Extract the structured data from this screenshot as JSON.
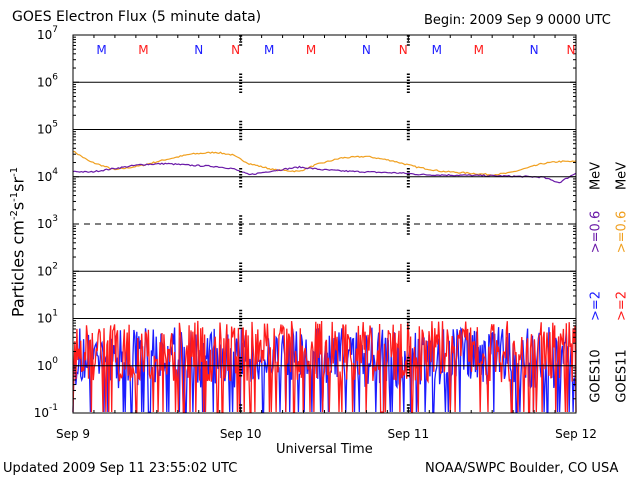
{
  "header": {
    "title": "GOES Electron Flux (5 minute data)",
    "begin": "Begin: 2009 Sep 9 0000 UTC"
  },
  "footer": {
    "updated": "Updated 2009 Sep 11 23:55:02 UTC",
    "credit": "NOAA/SWPC Boulder, CO USA"
  },
  "colors": {
    "blue": "#1c1cff",
    "red": "#ff1c1c",
    "orange": "#f0a020",
    "purple": "#6a1aa8"
  },
  "right_labels": {
    "ge2_blue": ">=2",
    "ge06_purple": ">=0.6",
    "mev_1": "MeV",
    "ge2_red": ">=2",
    "ge06_orange": ">=0.6",
    "mev_2": "MeV",
    "goes10": "GOES10",
    "goes11": "GOES11"
  },
  "markers": [
    {
      "t": 0.17,
      "label": "M",
      "color": "#1c1cff"
    },
    {
      "t": 0.42,
      "label": "M",
      "color": "#ff1c1c"
    },
    {
      "t": 0.75,
      "label": "N",
      "color": "#1c1cff"
    },
    {
      "t": 0.97,
      "label": "N",
      "color": "#ff1c1c"
    },
    {
      "t": 1.17,
      "label": "M",
      "color": "#1c1cff"
    },
    {
      "t": 1.42,
      "label": "M",
      "color": "#ff1c1c"
    },
    {
      "t": 1.75,
      "label": "N",
      "color": "#1c1cff"
    },
    {
      "t": 1.97,
      "label": "N",
      "color": "#ff1c1c"
    },
    {
      "t": 2.17,
      "label": "M",
      "color": "#1c1cff"
    },
    {
      "t": 2.42,
      "label": "M",
      "color": "#ff1c1c"
    },
    {
      "t": 2.75,
      "label": "N",
      "color": "#1c1cff"
    },
    {
      "t": 2.97,
      "label": "N",
      "color": "#ff1c1c"
    }
  ],
  "chart_data": {
    "type": "line",
    "title": "GOES Electron Flux (5 minute data)",
    "xlabel": "Universal Time",
    "ylabel": "Particles cm-2s-1sr-1",
    "ylabel_parts": {
      "base": "Particles cm",
      "e1": "-2",
      "s": "s",
      "e2": "-1",
      "sr": "sr",
      "e3": "-1"
    },
    "ylim_exponent": [
      -1,
      7
    ],
    "y_scale": "log",
    "yticks_exponent": [
      -1,
      0,
      1,
      2,
      3,
      4,
      5,
      6,
      7
    ],
    "x_day_range": [
      0,
      3
    ],
    "x_tick_labels": [
      {
        "day": 0,
        "label": "Sep 9"
      },
      {
        "day": 1,
        "label": "Sep 10"
      },
      {
        "day": 2,
        "label": "Sep 11"
      },
      {
        "day": 3,
        "label": "Sep 12"
      }
    ],
    "series": [
      {
        "name": "GOES11 >=0.6 MeV",
        "color": "#f0a020",
        "x_day": [
          0,
          0.1,
          0.25,
          0.4,
          0.55,
          0.7,
          0.85,
          0.95,
          1.05,
          1.2,
          1.35,
          1.45,
          1.6,
          1.75,
          1.9,
          2.05,
          2.2,
          2.35,
          2.5,
          2.6,
          2.7,
          2.8,
          2.9,
          3.0
        ],
        "y": [
          35000,
          21000,
          14000,
          17000,
          23000,
          30000,
          33000,
          29000,
          19000,
          14000,
          13000,
          18000,
          25000,
          27000,
          22000,
          16000,
          13000,
          12000,
          11000,
          12000,
          15000,
          19000,
          21000,
          21000
        ]
      },
      {
        "name": "GOES10 >=0.6 MeV",
        "color": "#6a1aa8",
        "x_day": [
          0,
          0.1,
          0.25,
          0.4,
          0.55,
          0.7,
          0.85,
          0.95,
          1.05,
          1.2,
          1.35,
          1.5,
          1.65,
          1.8,
          1.95,
          2.1,
          2.3,
          2.5,
          2.65,
          2.8,
          2.9,
          2.95,
          3.0
        ],
        "y": [
          13000,
          12500,
          15000,
          18000,
          19000,
          17500,
          16500,
          15000,
          11000,
          13500,
          16000,
          14000,
          13000,
          12500,
          12000,
          11000,
          10800,
          10500,
          10200,
          9800,
          7500,
          9500,
          12000
        ]
      }
    ],
    "noisy_series": [
      {
        "name": "GOES10 >=2 MeV",
        "color": "#1c1cff",
        "y_center": 1.5,
        "y_range": [
          0.1,
          15
        ]
      },
      {
        "name": "GOES11 >=2 MeV",
        "color": "#ff1c1c",
        "y_center": 2,
        "y_range": [
          0.1,
          10
        ]
      }
    ]
  }
}
